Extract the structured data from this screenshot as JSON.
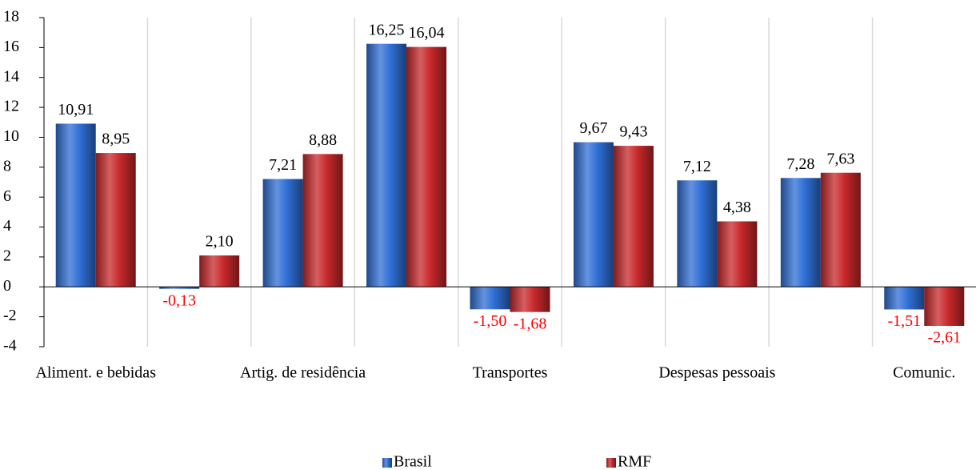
{
  "chart_data": {
    "type": "bar",
    "categories": [
      "Aliment. e bebidas",
      null,
      "Artig. de residência",
      null,
      "Transportes",
      null,
      "Despesas pessoais",
      null,
      "Comunic."
    ],
    "series": [
      {
        "name": "Brasil",
        "color": "#2f6fd6",
        "values": [
          10.91,
          -0.13,
          7.21,
          16.25,
          -1.5,
          9.67,
          7.12,
          7.28,
          -1.51
        ],
        "value_labels": [
          "10,91",
          "-0,13",
          "7,21",
          "16,25",
          "-1,50",
          "9,67",
          "7,12",
          "7,28",
          "-1,51"
        ]
      },
      {
        "name": "RMF",
        "color": "#c8282b",
        "values": [
          8.95,
          2.1,
          8.88,
          16.04,
          -1.68,
          9.43,
          4.38,
          7.63,
          -2.61
        ],
        "value_labels": [
          "8,95",
          "2,10",
          "8,88",
          "16,04",
          "-1,68",
          "9,43",
          "4,38",
          "7,63",
          "-2,61"
        ]
      }
    ],
    "ylim": [
      -4,
      18
    ],
    "yticks": [
      -4,
      -2,
      0,
      2,
      4,
      6,
      8,
      10,
      12,
      14,
      16,
      18
    ],
    "grid": true,
    "negative_label_color": "#ff0000",
    "legend": "bottom"
  }
}
